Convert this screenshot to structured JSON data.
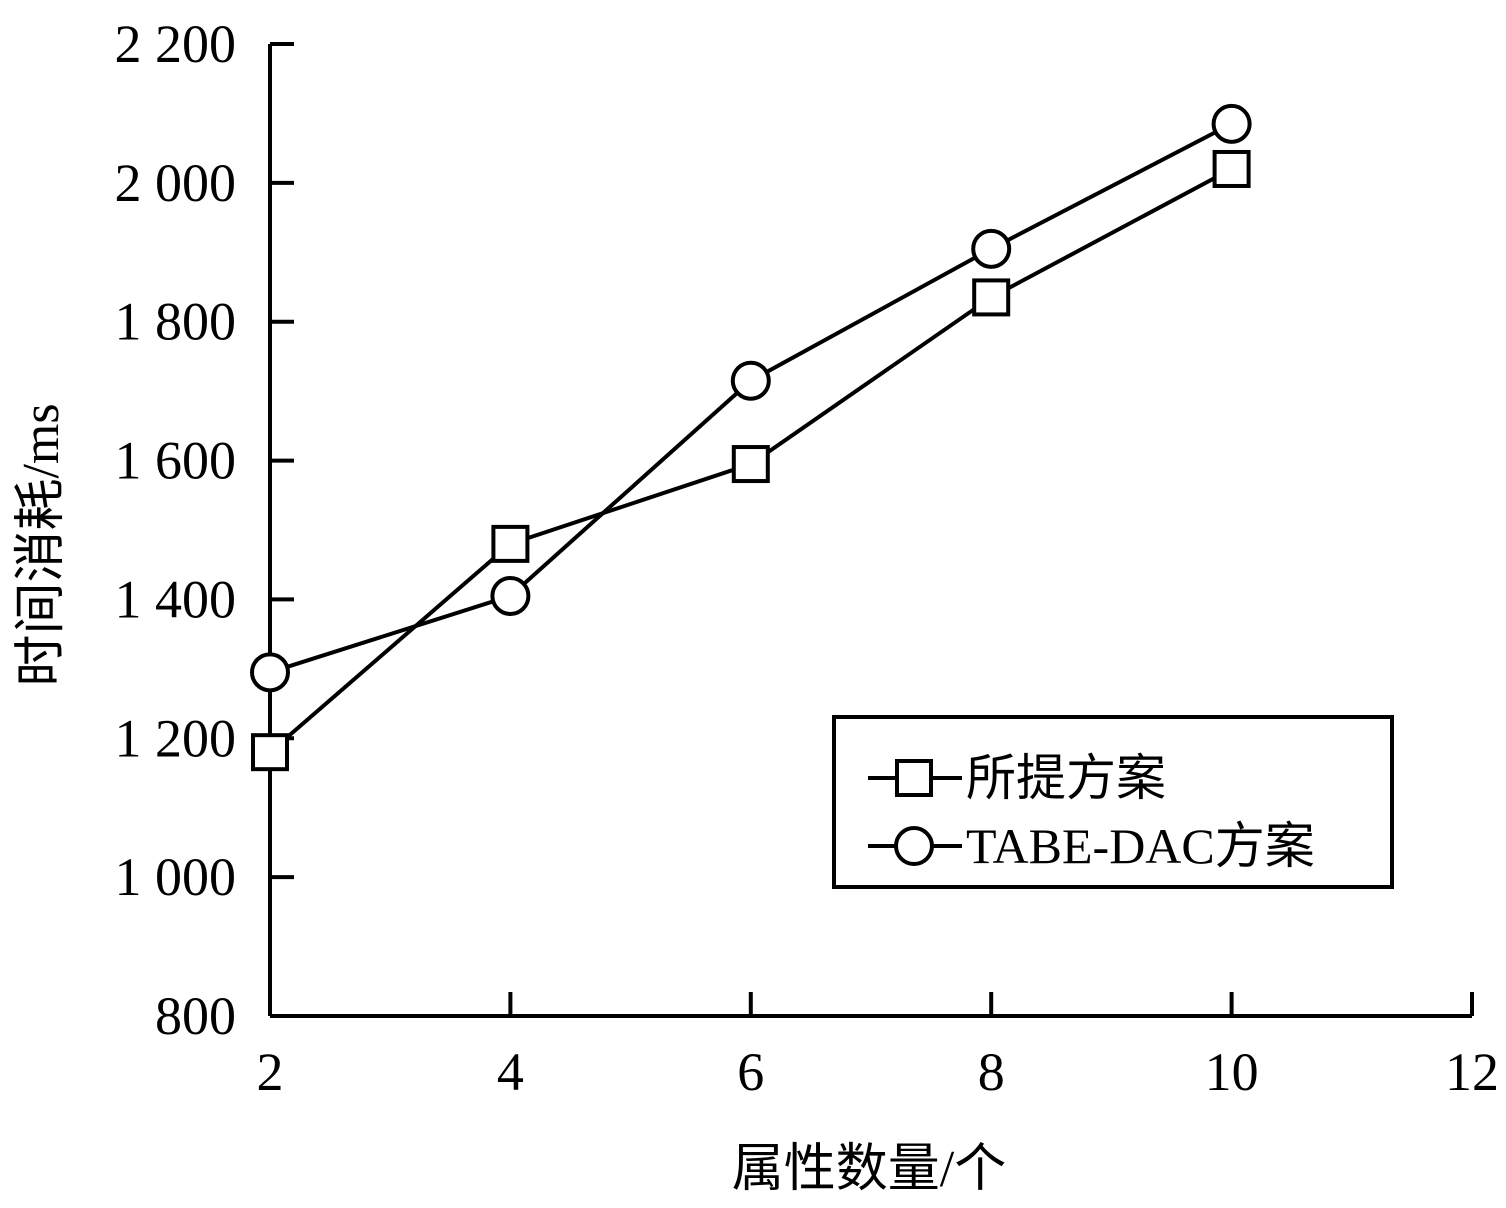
{
  "chart_data": {
    "type": "line",
    "title": "",
    "xlabel": "属性数量/个",
    "ylabel": "时间消耗/ms",
    "xlim": [
      2,
      12
    ],
    "ylim": [
      800,
      2200
    ],
    "x_ticks": [
      2,
      4,
      6,
      8,
      10,
      12
    ],
    "x_tick_labels": [
      "2",
      "4",
      "6",
      "8",
      "10",
      "12"
    ],
    "y_ticks": [
      800,
      1000,
      1200,
      1400,
      1600,
      1800,
      2000,
      2200
    ],
    "y_tick_labels": [
      "800",
      "1 000",
      "1 200",
      "1 400",
      "1 600",
      "1 800",
      "2 000",
      "2 200"
    ],
    "grid": false,
    "legend_position": "bottom-right",
    "series": [
      {
        "name": "所提方案",
        "marker": "square",
        "color": "#000000",
        "x": [
          2,
          4,
          6,
          8,
          10
        ],
        "values": [
          1180,
          1480,
          1595,
          1835,
          2020
        ]
      },
      {
        "name": "TABE-DAC方案",
        "marker": "circle",
        "color": "#000000",
        "x": [
          2,
          4,
          6,
          8,
          10
        ],
        "values": [
          1295,
          1405,
          1715,
          1905,
          2085
        ]
      }
    ]
  }
}
